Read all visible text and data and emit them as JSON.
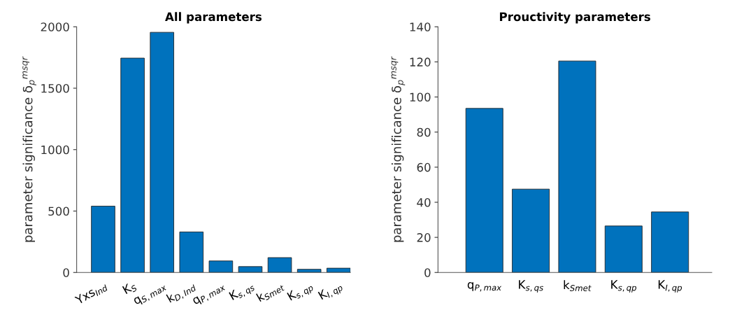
{
  "chart_data": [
    {
      "type": "bar",
      "title": "All parameters",
      "ylabel": "parameter significance δ$_{p}$$^{msqr}$",
      "categories": [
        "Yxs$_{Ind}$",
        "K$_{S}$",
        "q$_{S,max}$",
        "k$_{D,Ind}$",
        "q$_{P,max}$",
        "K$_{s,qs}$",
        "k$_{Smet}$",
        "K$_{s,qp}$",
        "K$_{I,qp}$"
      ],
      "values": [
        540,
        1745,
        1955,
        330,
        94,
        48,
        121,
        26,
        35
      ],
      "color": "#0072bd",
      "ylim": [
        0,
        2000
      ],
      "yticks": [
        0,
        500,
        1000,
        1500,
        2000
      ],
      "grid": false
    },
    {
      "type": "bar",
      "title": "Prouctivity parameters",
      "ylabel": "parameter significance δ$_{p}$$^{msqr}$",
      "categories": [
        "q$_{P,max}$",
        "K$_{s,qs}$",
        "k$_{Smet}$",
        "K$_{s,qp}$",
        "K$_{I,qp}$"
      ],
      "values": [
        93.5,
        47.5,
        120.5,
        26.5,
        34.5
      ],
      "color": "#0072bd",
      "ylim": [
        0,
        140
      ],
      "yticks": [
        0,
        20,
        40,
        60,
        80,
        100,
        120,
        140
      ],
      "grid": false
    }
  ]
}
